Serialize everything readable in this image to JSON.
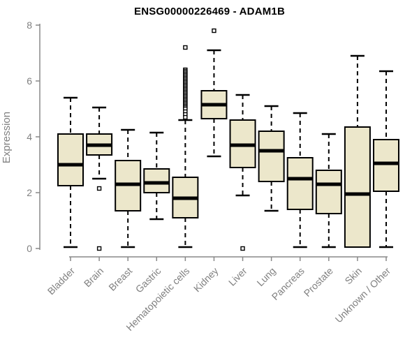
{
  "title": "ENSG00000226469 - ADAM1B",
  "chart_data": {
    "type": "boxplot",
    "title": "ENSG00000226469 - ADAM1B",
    "xlabel": "",
    "ylabel": "Expression",
    "ylim": [
      0,
      8
    ],
    "yticks": [
      0,
      2,
      4,
      6,
      8
    ],
    "grid": false,
    "legend": "none",
    "categories": [
      "Bladder",
      "Brain",
      "Breast",
      "Gastric",
      "Hematopoietic cells",
      "Kidney",
      "Liver",
      "Lung",
      "Pancreas",
      "Prostate",
      "Skin",
      "Unknown / Other"
    ],
    "boxes": [
      {
        "category": "Bladder",
        "low": 0.05,
        "q1": 2.25,
        "median": 3.0,
        "q3": 4.1,
        "high": 5.4,
        "outliers": []
      },
      {
        "category": "Brain",
        "low": 2.5,
        "q1": 3.35,
        "median": 3.7,
        "q3": 4.1,
        "high": 5.05,
        "outliers": [
          2.15,
          0.0
        ]
      },
      {
        "category": "Breast",
        "low": 0.05,
        "q1": 1.35,
        "median": 2.3,
        "q3": 3.15,
        "high": 4.25,
        "outliers": []
      },
      {
        "category": "Gastric",
        "low": 1.05,
        "q1": 2.0,
        "median": 2.35,
        "q3": 2.85,
        "high": 4.15,
        "outliers": []
      },
      {
        "category": "Hematopoietic cells",
        "low": 0.05,
        "q1": 1.1,
        "median": 1.8,
        "q3": 2.55,
        "high": 4.6,
        "outliers": [
          7.2,
          6.4,
          6.35,
          6.3,
          6.25,
          6.2,
          6.15,
          6.1,
          6.05,
          6.0,
          5.95,
          5.9,
          5.85,
          5.8,
          5.75,
          5.7,
          5.65,
          5.6,
          5.55,
          5.5,
          5.45,
          5.4,
          5.35,
          5.3,
          5.25,
          5.2,
          5.15,
          5.1,
          5.05,
          5.0,
          4.9,
          4.8,
          4.7
        ]
      },
      {
        "category": "Kidney",
        "low": 3.3,
        "q1": 4.65,
        "median": 5.15,
        "q3": 5.65,
        "high": 7.1,
        "outliers": [
          7.8
        ]
      },
      {
        "category": "Liver",
        "low": 1.9,
        "q1": 2.9,
        "median": 3.7,
        "q3": 4.6,
        "high": 5.5,
        "outliers": [
          0.0
        ]
      },
      {
        "category": "Lung",
        "low": 1.35,
        "q1": 2.4,
        "median": 3.5,
        "q3": 4.2,
        "high": 5.1,
        "outliers": []
      },
      {
        "category": "Pancreas",
        "low": 0.05,
        "q1": 1.4,
        "median": 2.5,
        "q3": 3.25,
        "high": 4.85,
        "outliers": []
      },
      {
        "category": "Prostate",
        "low": 0.05,
        "q1": 1.25,
        "median": 2.3,
        "q3": 2.8,
        "high": 4.1,
        "outliers": []
      },
      {
        "category": "Skin",
        "low": 0.05,
        "q1": 0.05,
        "median": 1.95,
        "q3": 4.35,
        "high": 6.9,
        "outliers": []
      },
      {
        "category": "Unknown / Other",
        "low": 0.05,
        "q1": 2.05,
        "median": 3.05,
        "q3": 3.9,
        "high": 6.35,
        "outliers": []
      }
    ],
    "colors": {
      "box_fill": "#ECE7CB",
      "box_border": "#000000",
      "median": "#000000",
      "whisker": "#000000",
      "axis_line": "#888888",
      "axis_text": "#808080",
      "title_text": "#000000",
      "background": "#ffffff"
    }
  }
}
